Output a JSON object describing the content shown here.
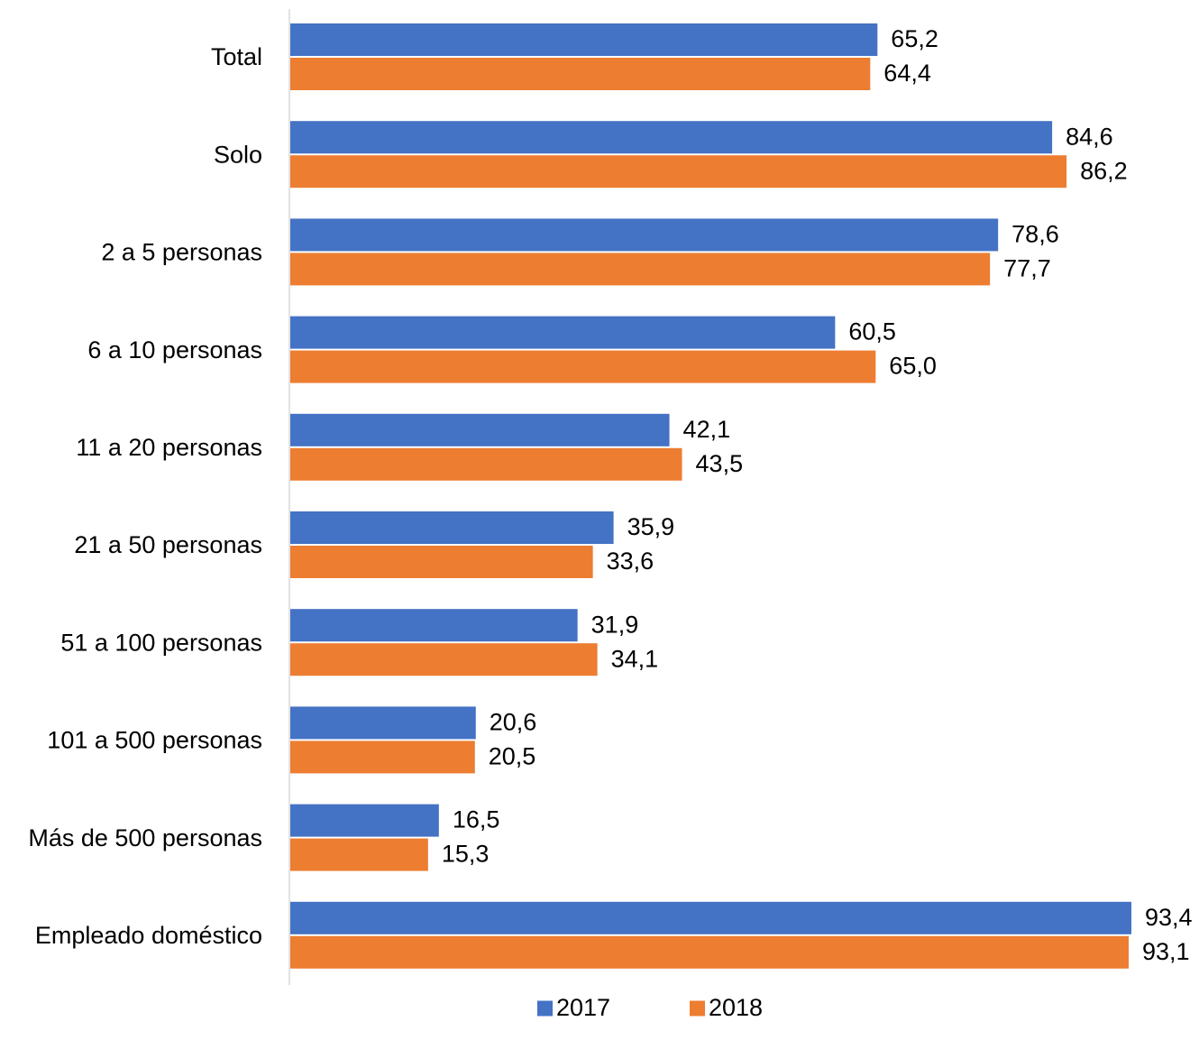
{
  "chart_data": {
    "type": "bar",
    "orientation": "horizontal",
    "categories": [
      "Total",
      "Solo",
      "2 a 5 personas",
      "6 a 10 personas",
      "11 a 20 personas",
      "21 a 50 personas",
      "51 a 100 personas",
      "101 a 500 personas",
      "Más de 500 personas",
      "Empleado doméstico"
    ],
    "series": [
      {
        "name": "2017",
        "color": "#4472C4",
        "values": [
          65.2,
          84.6,
          78.6,
          60.5,
          42.1,
          35.9,
          31.9,
          20.6,
          16.5,
          93.4
        ],
        "labels": [
          "65,2",
          "84,6",
          "78,6",
          "60,5",
          "42,1",
          "35,9",
          "31,9",
          "20,6",
          "16,5",
          "93,4"
        ]
      },
      {
        "name": "2018",
        "color": "#ED7D31",
        "values": [
          64.4,
          86.2,
          77.7,
          65.0,
          43.5,
          33.6,
          34.1,
          20.5,
          15.3,
          93.1
        ],
        "labels": [
          "64,4",
          "86,2",
          "77,7",
          "65,0",
          "43,5",
          "33,6",
          "34,1",
          "20,5",
          "15,3",
          "93,1"
        ]
      }
    ],
    "xlim": [
      0,
      93.4
    ],
    "grid": false,
    "legend_position": "bottom",
    "title": "",
    "xlabel": "",
    "ylabel": ""
  }
}
